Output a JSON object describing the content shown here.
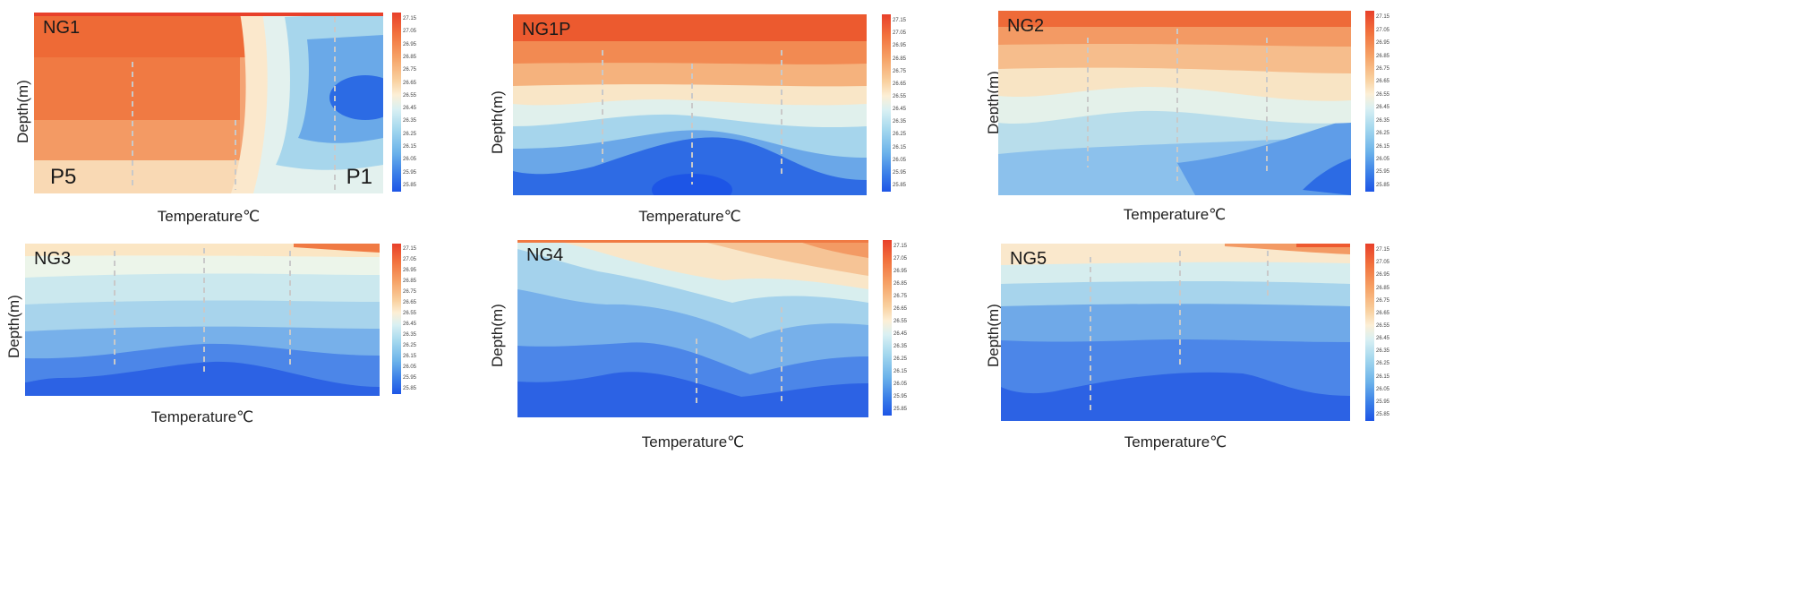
{
  "colorbar_ticks": [
    "27.15",
    "27.05",
    "26.95",
    "26.85",
    "26.75",
    "26.65",
    "26.55",
    "26.45",
    "26.35",
    "26.25",
    "26.15",
    "26.05",
    "25.95",
    "25.85"
  ],
  "panels": [
    {
      "title": "NG1",
      "ylabel": "Depth(m)",
      "xlabel": "Temperature℃",
      "left_label": "P5",
      "right_label": "P1"
    },
    {
      "title": "NG1P",
      "ylabel": "Depth(m)",
      "xlabel": "Temperature℃"
    },
    {
      "title": "NG2",
      "ylabel": "Depth(m)",
      "xlabel": "Temperature℃"
    },
    {
      "title": "NG3",
      "ylabel": "Depth(m)",
      "xlabel": "Temperature℃"
    },
    {
      "title": "NG4",
      "ylabel": "Depth(m)",
      "xlabel": "Temperature℃"
    },
    {
      "title": "NG5",
      "ylabel": "Depth(m)",
      "xlabel": "Temperature℃"
    }
  ],
  "chart_data": [
    {
      "type": "heatmap",
      "title": "NG1",
      "ylabel": "Depth(m)",
      "xlabel": "Temperature℃",
      "colorbar_range": [
        25.85,
        27.15
      ],
      "stations": [
        "P5",
        "P1"
      ]
    },
    {
      "type": "heatmap",
      "title": "NG1P",
      "ylabel": "Depth(m)",
      "xlabel": "Temperature℃",
      "colorbar_range": [
        25.85,
        27.15
      ]
    },
    {
      "type": "heatmap",
      "title": "NG2",
      "ylabel": "Depth(m)",
      "xlabel": "Temperature℃",
      "colorbar_range": [
        25.85,
        27.15
      ]
    },
    {
      "type": "heatmap",
      "title": "NG3",
      "ylabel": "Depth(m)",
      "xlabel": "Temperature℃",
      "colorbar_range": [
        25.85,
        27.15
      ]
    },
    {
      "type": "heatmap",
      "title": "NG4",
      "ylabel": "Depth(m)",
      "xlabel": "Temperature℃",
      "colorbar_range": [
        25.85,
        27.15
      ]
    },
    {
      "type": "heatmap",
      "title": "NG5",
      "ylabel": "Depth(m)",
      "xlabel": "Temperature℃",
      "colorbar_range": [
        25.85,
        27.15
      ]
    }
  ]
}
